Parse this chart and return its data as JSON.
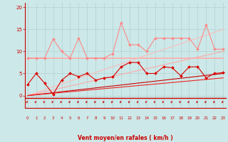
{
  "xlabel": "Vent moyen/en rafales ( km/h )",
  "xlim": [
    -0.3,
    23.3
  ],
  "ylim": [
    -2.8,
    21
  ],
  "yticks": [
    0,
    5,
    10,
    15,
    20
  ],
  "xtick_positions": [
    0,
    1,
    2,
    3,
    4,
    5,
    6,
    7,
    8,
    9,
    10,
    11,
    12,
    13,
    14,
    15,
    16,
    17,
    18,
    19,
    20,
    21,
    22,
    23
  ],
  "xtick_labels": [
    "0",
    "1",
    "2",
    "3",
    "4",
    "5",
    "6",
    "7",
    "8",
    "9",
    "10",
    "11",
    "12",
    "13",
    "14",
    "15",
    "16",
    "17",
    "18",
    "19",
    "20",
    "21",
    "22",
    "23"
  ],
  "bg_color": "#cce8e8",
  "grid_color": "#aacccc",
  "axis_color": "#cc0000",
  "tick_color": "#cc0000",
  "label_color": "#cc0000",
  "series": [
    {
      "x": [
        0,
        1,
        2,
        3,
        4,
        5,
        6,
        7,
        8,
        9,
        10,
        11,
        12,
        13,
        14,
        15,
        16,
        17,
        18,
        19,
        20,
        21,
        22,
        23
      ],
      "y": [
        8.5,
        8.5,
        8.5,
        8.5,
        8.5,
        8.5,
        8.5,
        8.5,
        8.5,
        8.5,
        8.5,
        8.5,
        8.5,
        8.5,
        8.5,
        8.5,
        8.5,
        8.5,
        8.5,
        8.5,
        8.5,
        8.5,
        8.5,
        8.5
      ],
      "color": "#ffaaaa",
      "marker": null,
      "linewidth": 1.2
    },
    {
      "x": [
        0,
        1,
        2,
        3,
        4,
        5,
        6,
        7,
        8,
        9,
        10,
        11,
        12,
        13,
        14,
        15,
        16,
        17,
        18,
        19,
        20,
        21,
        22,
        23
      ],
      "y": [
        0.0,
        0.43,
        0.87,
        1.3,
        1.74,
        2.17,
        2.61,
        3.04,
        3.48,
        3.91,
        4.35,
        4.78,
        5.22,
        5.65,
        6.09,
        6.52,
        6.96,
        7.39,
        7.83,
        8.26,
        8.7,
        9.13,
        9.57,
        10.0
      ],
      "color": "#ffaaaa",
      "marker": null,
      "linewidth": 0.8
    },
    {
      "x": [
        0,
        1,
        2,
        3,
        4,
        5,
        6,
        7,
        8,
        9,
        10,
        11,
        12,
        13,
        14,
        15,
        16,
        17,
        18,
        19,
        20,
        21,
        22,
        23
      ],
      "y": [
        0.0,
        0.65,
        1.3,
        1.96,
        2.61,
        3.26,
        3.91,
        4.57,
        5.22,
        5.87,
        6.52,
        7.17,
        7.83,
        8.48,
        9.13,
        9.78,
        10.43,
        11.09,
        11.74,
        12.39,
        13.04,
        13.7,
        14.35,
        15.0
      ],
      "color": "#ffbbbb",
      "marker": null,
      "linewidth": 0.8
    },
    {
      "x": [
        0,
        1,
        2,
        3,
        4,
        5,
        6,
        7,
        8,
        9,
        10,
        11,
        12,
        13,
        14,
        15,
        16,
        17,
        18,
        19,
        20,
        21,
        22,
        23
      ],
      "y": [
        0.0,
        0.22,
        0.43,
        0.65,
        0.87,
        1.09,
        1.3,
        1.52,
        1.74,
        1.96,
        2.17,
        2.39,
        2.61,
        2.83,
        3.04,
        3.26,
        3.48,
        3.7,
        3.91,
        4.13,
        4.35,
        4.57,
        4.78,
        5.0
      ],
      "color": "#cc0000",
      "marker": null,
      "linewidth": 0.8
    },
    {
      "x": [
        0,
        1,
        2,
        3,
        4,
        5,
        6,
        7,
        8,
        9,
        10,
        11,
        12,
        13,
        14,
        15,
        16,
        17,
        18,
        19,
        20,
        21,
        22,
        23
      ],
      "y": [
        0.0,
        0.17,
        0.35,
        0.52,
        0.7,
        0.87,
        1.04,
        1.22,
        1.39,
        1.57,
        1.74,
        1.91,
        2.09,
        2.26,
        2.43,
        2.61,
        2.78,
        2.96,
        3.13,
        3.3,
        3.48,
        3.65,
        3.83,
        4.0
      ],
      "color": "#ee2222",
      "marker": null,
      "linewidth": 0.8
    },
    {
      "x": [
        0,
        1,
        2,
        3,
        4,
        5,
        6,
        7,
        8,
        9,
        10,
        11,
        12,
        13,
        14,
        15,
        16,
        17,
        18,
        19,
        20,
        21,
        22,
        23
      ],
      "y": [
        2.5,
        5.0,
        2.8,
        0.3,
        3.5,
        5.0,
        4.3,
        5.0,
        3.5,
        4.0,
        4.2,
        6.5,
        7.5,
        7.5,
        5.0,
        5.0,
        6.5,
        6.3,
        4.5,
        6.5,
        6.5,
        4.0,
        5.0,
        5.2
      ],
      "color": "#dd0000",
      "marker": "D",
      "markersize": 2.0,
      "linewidth": 0.8
    },
    {
      "x": [
        0,
        1,
        2,
        3,
        4,
        5,
        6,
        7,
        8,
        9,
        10,
        11,
        12,
        13,
        14,
        15,
        16,
        17,
        18,
        19,
        20,
        21,
        22,
        23
      ],
      "y": [
        8.5,
        8.5,
        8.5,
        12.8,
        10.0,
        8.5,
        13.0,
        8.5,
        8.5,
        8.5,
        9.5,
        16.5,
        11.5,
        11.5,
        10.0,
        13.0,
        13.0,
        13.0,
        13.0,
        13.0,
        10.5,
        16.0,
        10.5,
        10.5
      ],
      "color": "#ff8888",
      "marker": "D",
      "markersize": 2.0,
      "linewidth": 0.8
    }
  ]
}
